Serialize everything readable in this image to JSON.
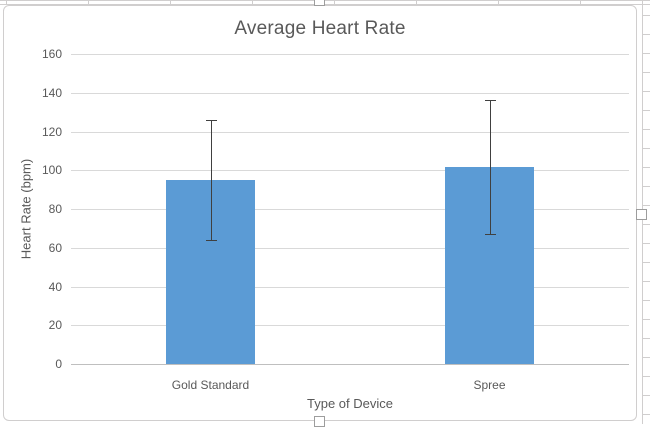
{
  "chart_data": {
    "type": "bar",
    "title": "Average Heart Rate",
    "xlabel": "Type of Device",
    "ylabel": "Heart Rate (bpm)",
    "categories": [
      "Gold Standard",
      "Spree"
    ],
    "series": [
      {
        "name": "Average Heart Rate",
        "values": [
          94.8,
          101.7
        ],
        "error_bars_plus_minus": [
          31,
          34.4
        ]
      }
    ],
    "ylim": [
      0,
      160
    ],
    "yticks": [
      0,
      20,
      40,
      60,
      80,
      100,
      120,
      140,
      160
    ],
    "grid": true,
    "legend": false,
    "colors": {
      "bar_fill": "#5b9bd5",
      "gridline": "#d9d9d9",
      "axis_line": "#bfbfbf",
      "error_bar": "#404040",
      "text": "#595959"
    }
  },
  "spreadsheet": {
    "gridline_color": "#d0cece"
  }
}
